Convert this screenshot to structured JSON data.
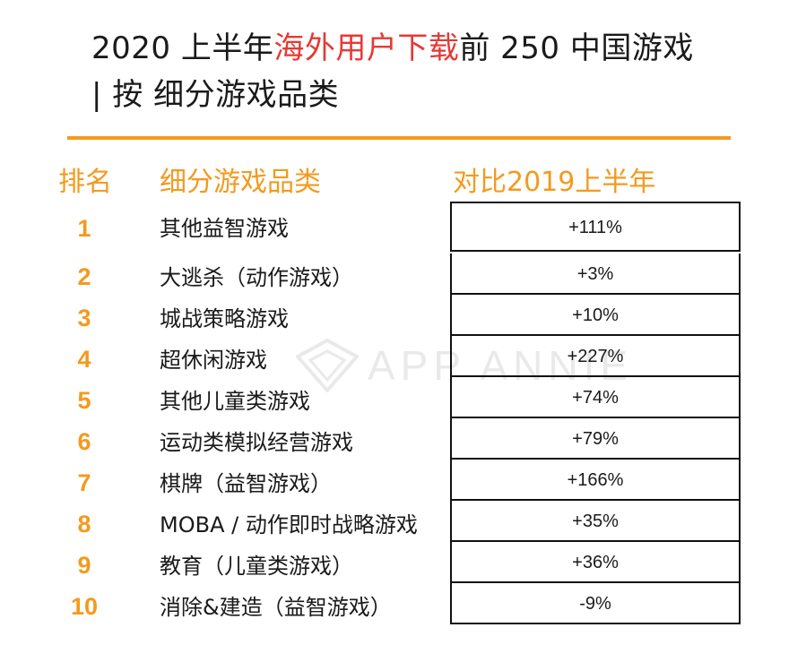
{
  "title": {
    "line1_prefix": "2020 上半年",
    "line1_highlight": "海外用户下载",
    "line1_suffix": "前 250 中国游戏",
    "line2": "| 按 细分游戏品类"
  },
  "headers": {
    "rank": "排名",
    "category": "细分游戏品类",
    "comparison": "对比2019上半年"
  },
  "rows": [
    {
      "rank": "1",
      "category": "其他益智游戏",
      "change": "+111%"
    },
    {
      "rank": "2",
      "category": "大逃杀（动作游戏）",
      "change": "+3%"
    },
    {
      "rank": "3",
      "category": "城战策略游戏",
      "change": "+10%"
    },
    {
      "rank": "4",
      "category": "超休闲游戏",
      "change": "+227%"
    },
    {
      "rank": "5",
      "category": "其他儿童类游戏",
      "change": "+74%"
    },
    {
      "rank": "6",
      "category": "运动类模拟经营游戏",
      "change": "+79%"
    },
    {
      "rank": "7",
      "category": "棋牌（益智游戏）",
      "change": "+166%"
    },
    {
      "rank": "8",
      "category": "MOBA / 动作即时战略游戏",
      "change": "+35%"
    },
    {
      "rank": "9",
      "category": "教育（儿童类游戏）",
      "change": "+36%"
    },
    {
      "rank": "10",
      "category": "消除&建造（益智游戏）",
      "change": "-9%"
    }
  ],
  "watermark": "APP ANNIE",
  "colors": {
    "accent": "#f39a1e",
    "highlight": "#e53935",
    "text": "#1a1a1a"
  }
}
